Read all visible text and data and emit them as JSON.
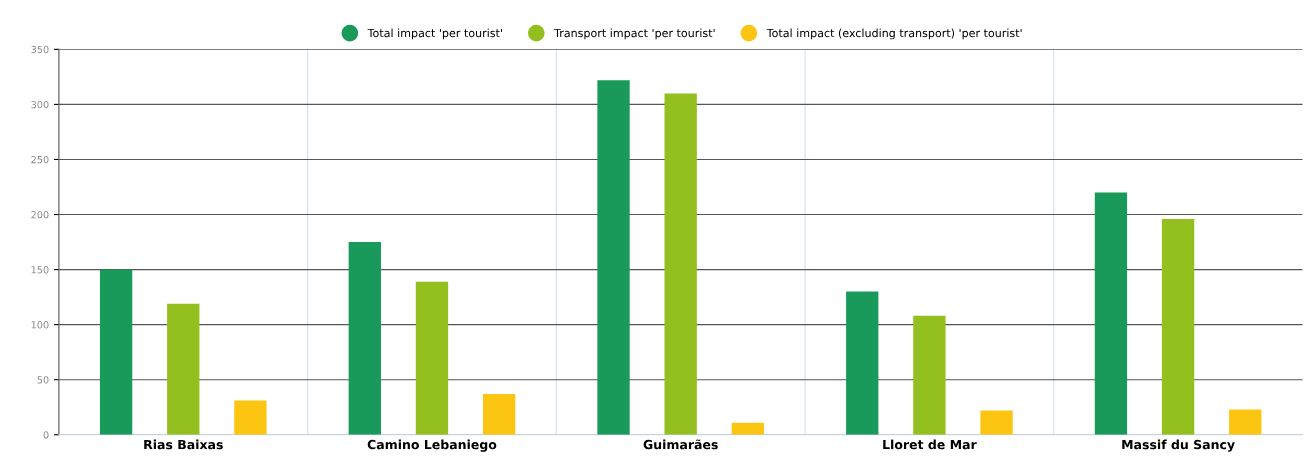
{
  "chart_data": {
    "type": "bar",
    "categories": [
      "Rias Baixas",
      "Camino Lebaniego",
      "Guimarães",
      "Lloret de Mar",
      "Massif du Sancy"
    ],
    "series": [
      {
        "name": "Total impact 'per tourist'",
        "color": "#1a9a5a",
        "values": [
          150,
          175,
          322,
          130,
          220
        ]
      },
      {
        "name": "Transport impact 'per tourist'",
        "color": "#93c01f",
        "values": [
          119,
          139,
          310,
          108,
          196
        ]
      },
      {
        "name": "Total impact (excluding transport) 'per tourist'",
        "color": "#fcc512",
        "values": [
          31,
          37,
          11,
          22,
          23
        ]
      }
    ],
    "ylim": [
      0,
      350
    ],
    "yticks": [
      0,
      50,
      100,
      150,
      200,
      250,
      300,
      350
    ],
    "grid": true,
    "legend": "top"
  }
}
